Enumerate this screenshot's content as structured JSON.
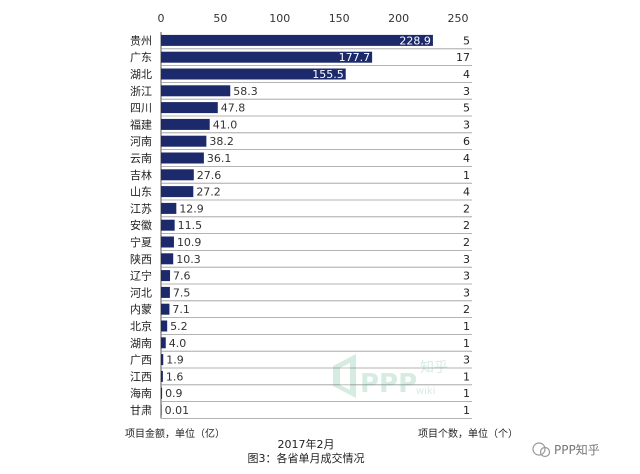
{
  "chart_data": {
    "type": "bar",
    "orientation": "horizontal",
    "categories": [
      "贵州",
      "广东",
      "湖北",
      "浙江",
      "四川",
      "福建",
      "河南",
      "云南",
      "吉林",
      "山东",
      "江苏",
      "安徽",
      "宁夏",
      "陕西",
      "辽宁",
      "河北",
      "内蒙",
      "北京",
      "湖南",
      "广西",
      "江西",
      "海南",
      "甘肃"
    ],
    "values": [
      228.9,
      177.7,
      155.5,
      58.3,
      47.8,
      41.0,
      38.2,
      36.1,
      27.6,
      27.2,
      12.9,
      11.5,
      10.9,
      10.3,
      7.6,
      7.5,
      7.1,
      5.2,
      4.0,
      1.9,
      1.6,
      0.9,
      0.01
    ],
    "value_labels": [
      "228.9",
      "177.7",
      "155.5",
      "58.3",
      "47.8",
      "41.0",
      "38.2",
      "36.1",
      "27.6",
      "27.2",
      "12.9",
      "11.5",
      "10.9",
      "10.3",
      "7.6",
      "7.5",
      "7.1",
      "5.2",
      "4.0",
      "1.9",
      "1.6",
      "0.9",
      "0.01"
    ],
    "counts": [
      5,
      17,
      4,
      3,
      5,
      3,
      6,
      4,
      1,
      4,
      2,
      2,
      2,
      3,
      3,
      3,
      2,
      1,
      1,
      3,
      1,
      1,
      1
    ],
    "xlim": [
      0,
      250
    ],
    "xticks": [
      "0",
      "50",
      "100",
      "150",
      "200",
      "250"
    ],
    "x_axis_position": "top",
    "bar_color": "#1c2a6b",
    "grid": false,
    "left_label": "项目金额，单位（亿）",
    "right_label": "项目个数，单位（个）",
    "date": "2017年2月",
    "caption": "图3：各省单月成交情况"
  },
  "watermarks": {
    "zhihu_small": "知乎",
    "ppp_text": "PPP",
    "wiki_text": "wiki",
    "ppp_zhihu": "PPP知乎"
  }
}
